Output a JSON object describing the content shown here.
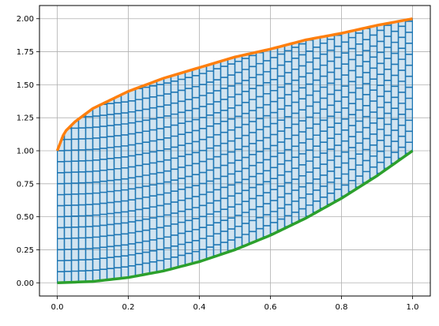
{
  "chart_data": {
    "type": "area",
    "title": "",
    "xlabel": "",
    "ylabel": "",
    "xlim": [
      -0.05,
      1.05
    ],
    "ylim": [
      -0.1,
      2.1
    ],
    "grid": true,
    "legend": "none",
    "xticks": [
      "0.0",
      "0.2",
      "0.4",
      "0.6",
      "0.8",
      "1.0"
    ],
    "yticks": [
      "0.00",
      "0.25",
      "0.50",
      "0.75",
      "1.00",
      "1.25",
      "1.50",
      "1.75",
      "2.00"
    ],
    "x_range": [
      0,
      1
    ],
    "series": [
      {
        "role": "upper",
        "color": "#ff7f0e",
        "x": [
          0,
          0.02,
          0.05,
          0.1,
          0.2,
          0.3,
          0.4,
          0.5,
          0.6,
          0.7,
          0.8,
          0.9,
          1.0
        ],
        "y": [
          1.0,
          1.14,
          1.22,
          1.32,
          1.45,
          1.55,
          1.63,
          1.71,
          1.77,
          1.84,
          1.89,
          1.95,
          2.0
        ]
      },
      {
        "role": "lower",
        "color": "#2ca02c",
        "x": [
          0,
          0.1,
          0.2,
          0.3,
          0.4,
          0.5,
          0.6,
          0.7,
          0.8,
          0.9,
          1.0
        ],
        "y": [
          0,
          0.01,
          0.04,
          0.09,
          0.16,
          0.25,
          0.36,
          0.49,
          0.64,
          0.81,
          1.0
        ]
      }
    ],
    "fill": {
      "between": [
        "upper",
        "lower"
      ],
      "face_color": "#1f77b4",
      "face_alpha": 0.2,
      "edge_color": "#1f77b4",
      "hatch": "grid",
      "hatch_columns": 50,
      "hatch_row_height": 0.0833
    }
  }
}
